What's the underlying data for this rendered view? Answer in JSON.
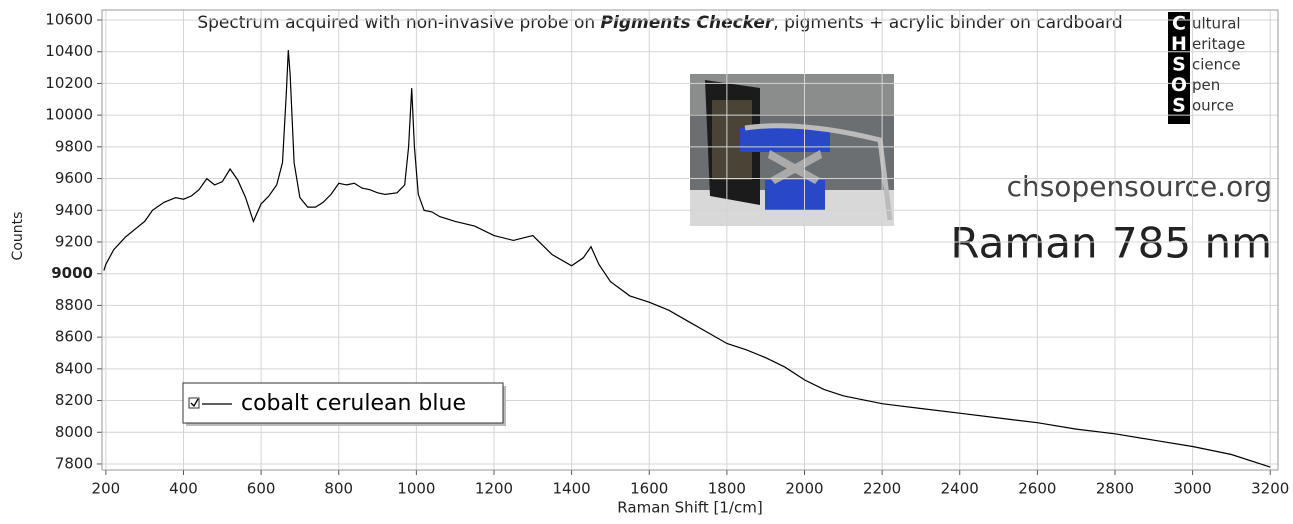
{
  "chart_data": {
    "type": "line",
    "title_parts": [
      "Spectrum acquired with non-invasive probe on ",
      "Pigments Checker",
      ", pigments + acrylic binder on cardboard"
    ],
    "x_label": "Raman Shift [1/cm]",
    "y_label": "Counts",
    "x": [
      195,
      200,
      220,
      250,
      280,
      300,
      320,
      350,
      380,
      400,
      420,
      440,
      460,
      480,
      500,
      520,
      540,
      560,
      580,
      600,
      620,
      640,
      655,
      665,
      670,
      675,
      685,
      700,
      720,
      740,
      760,
      780,
      800,
      820,
      840,
      860,
      880,
      900,
      920,
      950,
      970,
      980,
      988,
      995,
      1005,
      1020,
      1040,
      1060,
      1100,
      1150,
      1200,
      1250,
      1300,
      1350,
      1400,
      1430,
      1450,
      1470,
      1500,
      1550,
      1600,
      1650,
      1700,
      1750,
      1800,
      1850,
      1900,
      1950,
      2000,
      2050,
      2100,
      2200,
      2300,
      2400,
      2500,
      2600,
      2700,
      2800,
      2900,
      3000,
      3100,
      3200
    ],
    "series": [
      {
        "name": "cobalt cerulean blue",
        "color": "#000000",
        "values": [
          9020,
          9060,
          9150,
          9230,
          9290,
          9330,
          9400,
          9450,
          9480,
          9470,
          9490,
          9530,
          9600,
          9560,
          9580,
          9660,
          9590,
          9480,
          9330,
          9440,
          9490,
          9560,
          9700,
          10150,
          10410,
          10250,
          9700,
          9480,
          9420,
          9420,
          9450,
          9500,
          9570,
          9560,
          9570,
          9540,
          9530,
          9510,
          9500,
          9510,
          9560,
          9800,
          10170,
          9800,
          9500,
          9400,
          9390,
          9360,
          9330,
          9300,
          9240,
          9210,
          9240,
          9120,
          9050,
          9100,
          9170,
          9060,
          8950,
          8860,
          8820,
          8770,
          8700,
          8630,
          8560,
          8520,
          8470,
          8410,
          8330,
          8270,
          8230,
          8180,
          8150,
          8120,
          8090,
          8060,
          8020,
          7990,
          7950,
          7910,
          7860,
          7780
        ]
      }
    ],
    "xlim": [
      190,
      3220
    ],
    "ylim": [
      7762,
      10663
    ],
    "xticks": [
      200,
      400,
      600,
      800,
      1000,
      1200,
      1400,
      1600,
      1800,
      2000,
      2200,
      2400,
      2600,
      2800,
      3000,
      3200
    ],
    "yticks": [
      7800,
      8000,
      8200,
      8400,
      8600,
      8800,
      9000,
      9200,
      9400,
      9600,
      9800,
      10000,
      10200,
      10400,
      10600
    ],
    "emphasized_ytick": 9000,
    "grid": true,
    "legend": "lower left"
  },
  "logo": {
    "letters": [
      "C",
      "H",
      "S",
      "O",
      "S"
    ],
    "words": [
      "ultural",
      "eritage",
      "cience",
      "pen",
      "ource"
    ]
  },
  "website": "chsopensource.org",
  "method": "Raman 785 nm"
}
